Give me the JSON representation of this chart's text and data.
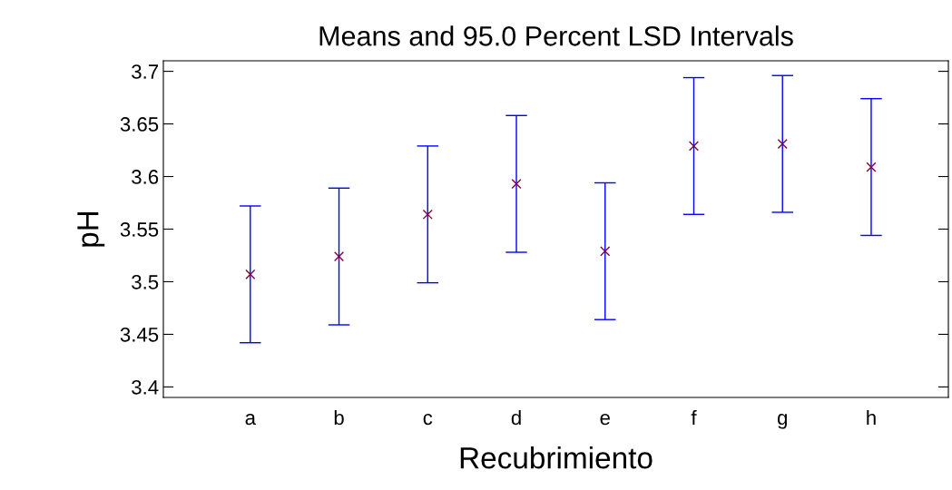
{
  "chart_data": {
    "type": "scatter",
    "title": "Means and 95.0 Percent LSD Intervals",
    "xlabel": "Recubrimiento",
    "ylabel": "pH",
    "categories": [
      "a",
      "b",
      "c",
      "d",
      "e",
      "f",
      "g",
      "h"
    ],
    "series": [
      {
        "color": "#800040",
        "values": [
          3.507,
          3.524,
          3.564,
          3.593,
          3.529,
          3.629,
          3.631,
          3.609
        ],
        "errors": [
          0.065,
          0.065,
          0.065,
          0.065,
          0.065,
          0.065,
          0.065,
          0.065
        ]
      }
    ],
    "marker": "cross",
    "ylim": [
      3.39,
      3.71
    ],
    "yticks": [
      3.4,
      3.45,
      3.5,
      3.55,
      3.6,
      3.65,
      3.7
    ],
    "grid": false,
    "legend": false
  }
}
